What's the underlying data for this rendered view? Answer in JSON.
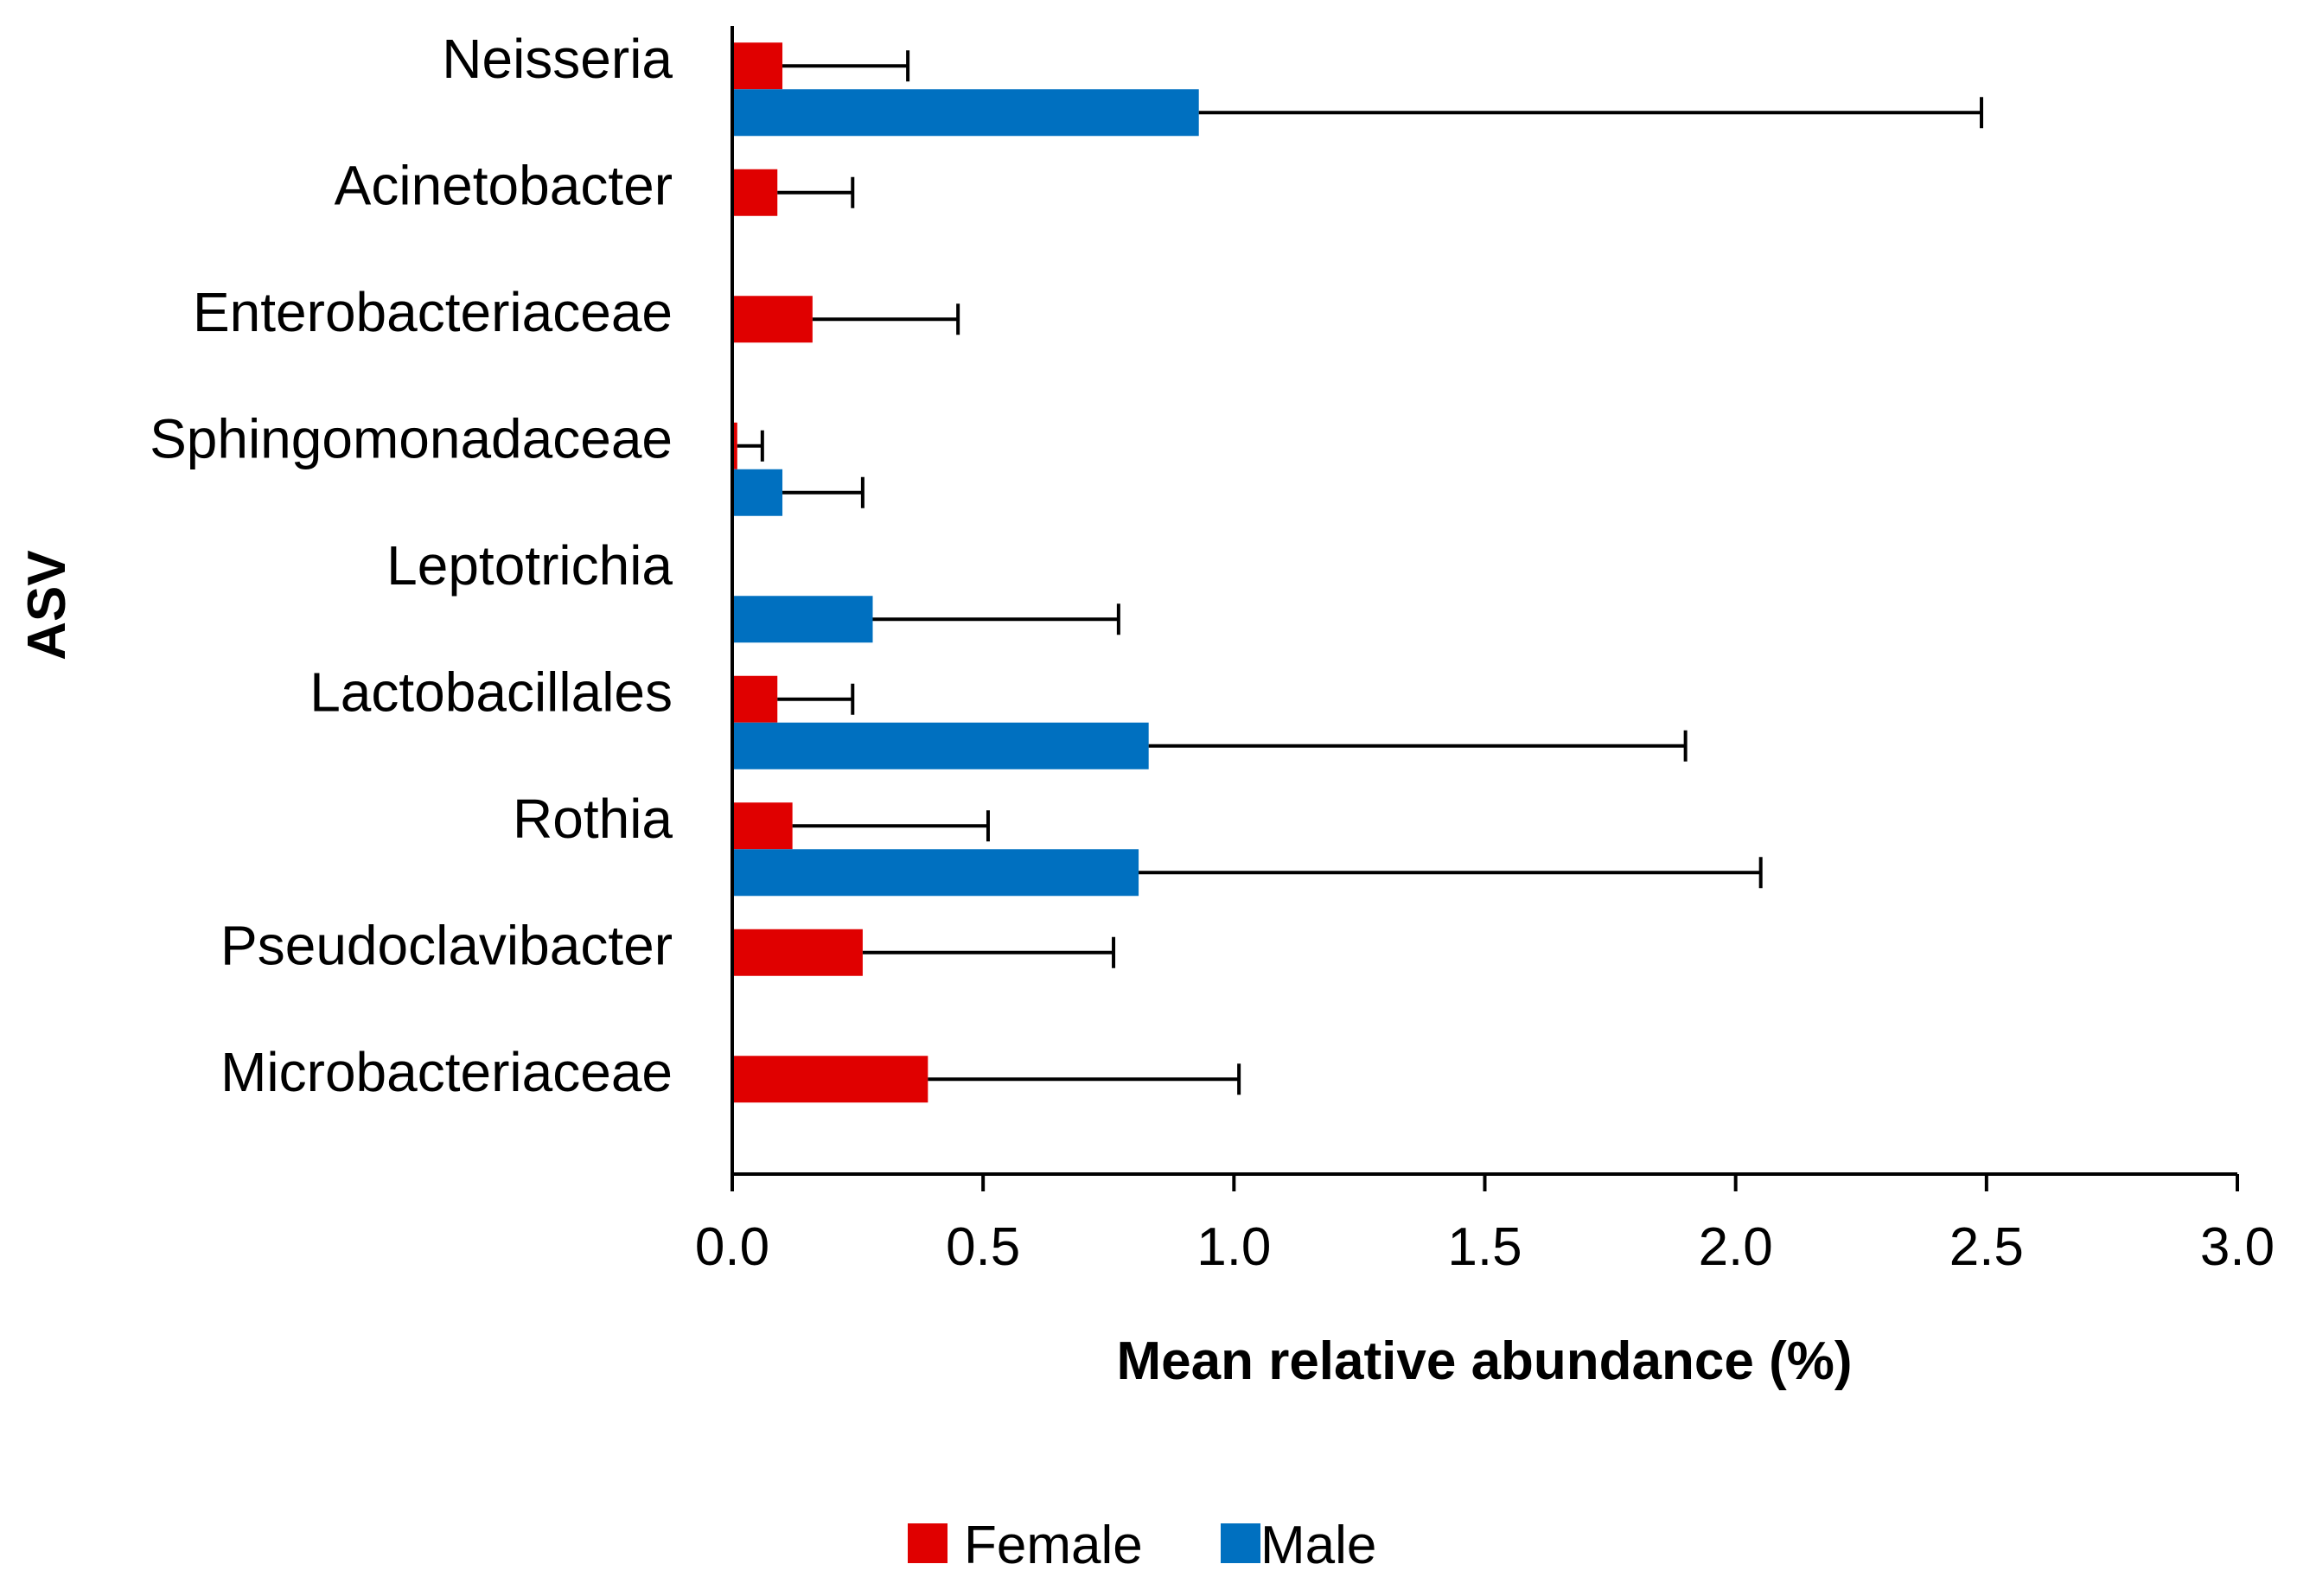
{
  "chart_data": {
    "type": "bar",
    "orientation": "horizontal",
    "title": "",
    "xlabel": "Mean relative abundance (%)",
    "ylabel": "ASV",
    "xlim": [
      0,
      3.0
    ],
    "xticks": [
      "0.0",
      "0.5",
      "1.0",
      "1.5",
      "2.0",
      "2.5",
      "3.0"
    ],
    "grid": false,
    "legend_position": "bottom-center",
    "categories": [
      "Neisseria",
      "Acinetobacter",
      "Enterobacteriaceae",
      "Sphingomonadaceae",
      "Leptotrichia",
      "Lactobacillales",
      "Rothia",
      "Pseudoclavibacter",
      "Microbacteriaceae"
    ],
    "series": [
      {
        "name": "Female",
        "color": "#e00000",
        "values": [
          0.1,
          0.09,
          0.16,
          0.01,
          null,
          0.09,
          0.12,
          0.26,
          0.39
        ],
        "error": [
          0.25,
          0.15,
          0.29,
          0.05,
          null,
          0.15,
          0.39,
          0.5,
          0.62
        ]
      },
      {
        "name": "Male",
        "color": "#0070c0",
        "values": [
          0.93,
          null,
          null,
          0.1,
          0.28,
          0.83,
          0.81,
          null,
          null
        ],
        "error": [
          1.56,
          null,
          null,
          0.16,
          0.49,
          1.07,
          1.24,
          null,
          null
        ]
      }
    ]
  }
}
